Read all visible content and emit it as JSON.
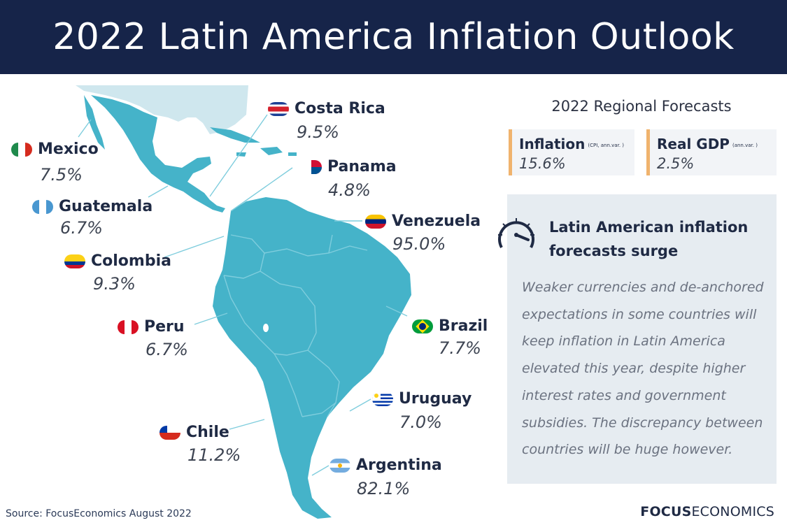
{
  "header": {
    "title": "2022 Latin America Inflation Outlook"
  },
  "colors": {
    "header_bg": "#162449",
    "map_fill": "#45b3c9",
    "accent": "#f0b36d",
    "panel_bg": "#e6ecf1"
  },
  "countries": [
    {
      "id": "mexico",
      "name": "Mexico",
      "value": "7.5%"
    },
    {
      "id": "costa-rica",
      "name": "Costa Rica",
      "value": "9.5%"
    },
    {
      "id": "panama",
      "name": "Panama",
      "value": "4.8%"
    },
    {
      "id": "guatemala",
      "name": "Guatemala",
      "value": "6.7%"
    },
    {
      "id": "venezuela",
      "name": "Venezuela",
      "value": "95.0%"
    },
    {
      "id": "colombia",
      "name": "Colombia",
      "value": "9.3%"
    },
    {
      "id": "peru",
      "name": "Peru",
      "value": "6.7%"
    },
    {
      "id": "brazil",
      "name": "Brazil",
      "value": "7.7%"
    },
    {
      "id": "uruguay",
      "name": "Uruguay",
      "value": "7.0%"
    },
    {
      "id": "chile",
      "name": "Chile",
      "value": "11.2%"
    },
    {
      "id": "argentina",
      "name": "Argentina",
      "value": "82.1%"
    }
  ],
  "regional": {
    "title": "2022 Regional Forecasts",
    "inflation": {
      "label": "Inflation",
      "note": "(CPI, ann.var. )",
      "value": "15.6%"
    },
    "gdp": {
      "label": "Real GDP",
      "note": "(ann.var. )",
      "value": "2.5%"
    }
  },
  "panel": {
    "title": "Latin American inflation forecasts surge",
    "body": "Weaker currencies and de-anchored expectations in some countries will keep inflation in Latin America elevated this year, despite higher interest rates and government subsidies. The discrepancy between countries will be huge however."
  },
  "footer": {
    "source": "Source: FocusEconomics August 2022",
    "brand_bold": "FOCUS",
    "brand_rest": "ECONOMICS"
  }
}
